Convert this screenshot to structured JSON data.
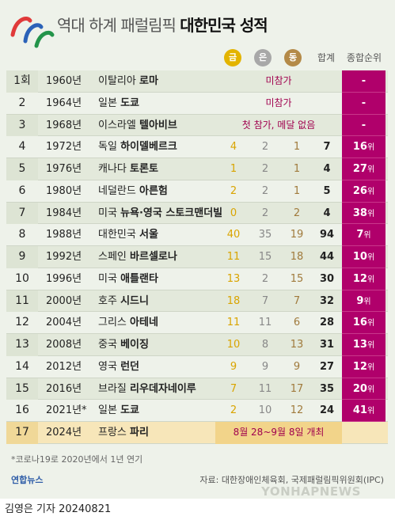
{
  "title": {
    "light": "역대 하계 패럴림픽",
    "bold": "대한민국 성적"
  },
  "headers": {
    "gold": "금",
    "silver": "은",
    "bronze": "동",
    "total": "합계",
    "rank": "종합순위"
  },
  "colors": {
    "gold": "#e3b400",
    "silver": "#a8a8a8",
    "bronze": "#b48a48",
    "rank": "#b0006b"
  },
  "rows": [
    {
      "num": "1회",
      "year": "1960년",
      "country": "이탈리아",
      "city": "로마",
      "note": "미참가",
      "rank": "-"
    },
    {
      "num": "2",
      "year": "1964년",
      "country": "일본",
      "city": "도쿄",
      "note": "미참가",
      "rank": "-"
    },
    {
      "num": "3",
      "year": "1968년",
      "country": "이스라엘",
      "city": "텔아비브",
      "note": "첫 참가, 메달 없음",
      "rank": "-"
    },
    {
      "num": "4",
      "year": "1972년",
      "country": "독일",
      "city": "하이델베르크",
      "g": "4",
      "s": "2",
      "b": "1",
      "t": "7",
      "rank": "16",
      "unit": "위"
    },
    {
      "num": "5",
      "year": "1976년",
      "country": "캐나다",
      "city": "토론토",
      "g": "1",
      "s": "2",
      "b": "1",
      "t": "4",
      "rank": "27",
      "unit": "위"
    },
    {
      "num": "6",
      "year": "1980년",
      "country": "네덜란드",
      "city": "아른험",
      "g": "2",
      "s": "2",
      "b": "1",
      "t": "5",
      "rank": "26",
      "unit": "위"
    },
    {
      "num": "7",
      "year": "1984년",
      "country": "미국",
      "city": "뉴욕·영국 스토크맨더빌",
      "g": "0",
      "s": "2",
      "b": "2",
      "t": "4",
      "rank": "38",
      "unit": "위"
    },
    {
      "num": "8",
      "year": "1988년",
      "country": "대한민국",
      "city": "서울",
      "g": "40",
      "s": "35",
      "b": "19",
      "t": "94",
      "rank": "7",
      "unit": "위"
    },
    {
      "num": "9",
      "year": "1992년",
      "country": "스페인",
      "city": "바르셀로나",
      "g": "11",
      "s": "15",
      "b": "18",
      "t": "44",
      "rank": "10",
      "unit": "위"
    },
    {
      "num": "10",
      "year": "1996년",
      "country": "미국",
      "city": "애틀랜타",
      "g": "13",
      "s": "2",
      "b": "15",
      "t": "30",
      "rank": "12",
      "unit": "위"
    },
    {
      "num": "11",
      "year": "2000년",
      "country": "호주",
      "city": "시드니",
      "g": "18",
      "s": "7",
      "b": "7",
      "t": "32",
      "rank": "9",
      "unit": "위"
    },
    {
      "num": "12",
      "year": "2004년",
      "country": "그리스",
      "city": "아테네",
      "g": "11",
      "s": "11",
      "b": "6",
      "t": "28",
      "rank": "16",
      "unit": "위"
    },
    {
      "num": "13",
      "year": "2008년",
      "country": "중국",
      "city": "베이징",
      "g": "10",
      "s": "8",
      "b": "13",
      "t": "31",
      "rank": "13",
      "unit": "위"
    },
    {
      "num": "14",
      "year": "2012년",
      "country": "영국",
      "city": "런던",
      "g": "9",
      "s": "9",
      "b": "9",
      "t": "27",
      "rank": "12",
      "unit": "위"
    },
    {
      "num": "15",
      "year": "2016년",
      "country": "브라질",
      "city": "리우데자네이루",
      "g": "7",
      "s": "11",
      "b": "17",
      "t": "35",
      "rank": "20",
      "unit": "위"
    },
    {
      "num": "16",
      "year": "2021년*",
      "country": "일본",
      "city": "도쿄",
      "g": "2",
      "s": "10",
      "b": "12",
      "t": "24",
      "rank": "41",
      "unit": "위"
    },
    {
      "num": "17",
      "year": "2024년",
      "country": "프랑스",
      "city": "파리",
      "note": "8월 28~9월 8일 개최"
    }
  ],
  "footnote": "*코로나19로 2020년에서 1년 연기",
  "brand": "연합뉴스",
  "source": "자료: 대한장애인체육회, 국제패럴림픽위원회(IPC)",
  "watermark": "YONHAPNEWS",
  "credit": "김영은 기자 20240821"
}
